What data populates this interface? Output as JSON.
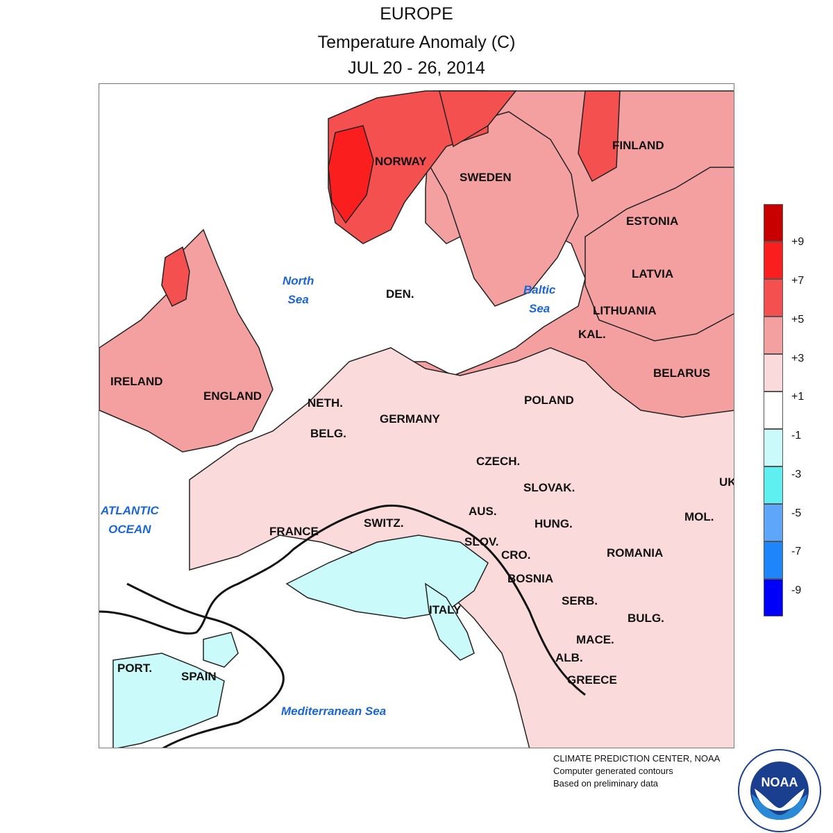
{
  "header": {
    "region": "EUROPE",
    "variable": "Temperature Anomaly (C)",
    "period": "JUL 20 - 26, 2014"
  },
  "labels": {
    "countries": [
      "NORWAY",
      "SWEDEN",
      "FINLAND",
      "ESTONIA",
      "LATVIA",
      "LITHUANIA",
      "KAL.",
      "BELARUS",
      "DEN.",
      "IRELAND",
      "ENGLAND",
      "NETH.",
      "BELG.",
      "GERMANY",
      "POLAND",
      "CZECH.",
      "SLOVAK.",
      "UK",
      "AUS.",
      "HUNG.",
      "MOL.",
      "SWITZ.",
      "FRANCE",
      "SLOV.",
      "CRO.",
      "ROMANIA",
      "BOSNIA",
      "SERB.",
      "BULG.",
      "ITALY",
      "MACE.",
      "ALB.",
      "GREECE",
      "PORT.",
      "SPAIN"
    ],
    "seas": [
      "North\nSea",
      "Baltic\nSea",
      "ATLANTIC\nOCEAN",
      "Mediterranean Sea"
    ]
  },
  "legend": {
    "ticks": [
      "+9",
      "+7",
      "+5",
      "+3",
      "+1",
      "-1",
      "-3",
      "-5",
      "-7",
      "-9"
    ],
    "colors": [
      "#c80000",
      "#fa1e1e",
      "#f55050",
      "#f5a0a0",
      "#fadada",
      "#ffffff",
      "#cafafa",
      "#5ef0f0",
      "#5ea6fa",
      "#1e86fa",
      "#0000fa"
    ]
  },
  "credits": {
    "line1": "CLIMATE PREDICTION CENTER, NOAA",
    "line2": "Computer generated contours",
    "line3": "Based on preliminary data"
  },
  "logo": {
    "text": "NOAA",
    "ring_text": "NATIONAL OCEANIC AND ATMOSPHERIC ADMINISTRATION · U.S. DEPARTMENT OF COMMERCE"
  },
  "icons": {
    "logo": "noaa-logo-icon",
    "map": "anomaly-map"
  }
}
